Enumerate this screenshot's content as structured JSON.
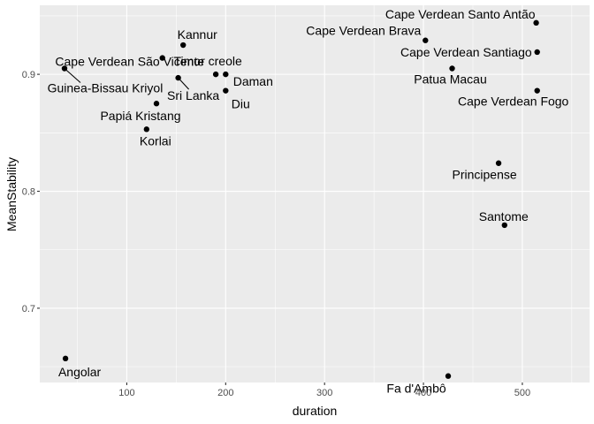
{
  "chart_data": {
    "type": "scatter",
    "xlabel": "duration",
    "ylabel": "MeanStability",
    "xlim": [
      12,
      568
    ],
    "ylim": [
      0.6365,
      0.959
    ],
    "x_ticks": [
      100,
      200,
      300,
      400,
      500
    ],
    "y_ticks": [
      0.7,
      0.8,
      0.9
    ],
    "x_tick_labels": [
      "100",
      "200",
      "300",
      "400",
      "500"
    ],
    "y_tick_labels": [
      "0.7",
      "0.8",
      "0.9"
    ],
    "grid": true,
    "background": "#ebebeb",
    "grid_color": "#ffffff",
    "point_color": "#000000",
    "points": [
      {
        "label": "Cape Verdean Santo Antão",
        "x": 514,
        "y": 0.944
      },
      {
        "label": "Cape Verdean Brava",
        "x": 402,
        "y": 0.929
      },
      {
        "label": "Cape Verdean Santiago",
        "x": 515,
        "y": 0.919
      },
      {
        "label": "Patua Macau",
        "x": 429,
        "y": 0.905
      },
      {
        "label": "Cape Verdean Fogo",
        "x": 515,
        "y": 0.886
      },
      {
        "label": "Kannur",
        "x": 157,
        "y": 0.925
      },
      {
        "label": "Cape Verdean São Vicente",
        "x": 136,
        "y": 0.914
      },
      {
        "label": "Guinea-Bissau Kriyol",
        "x": 37,
        "y": 0.905
      },
      {
        "label": "Sri Lanka",
        "x": 152,
        "y": 0.897
      },
      {
        "label": "Timor creole",
        "x": 190,
        "y": 0.9
      },
      {
        "label": "Daman",
        "x": 200,
        "y": 0.9
      },
      {
        "label": "Diu",
        "x": 200,
        "y": 0.886
      },
      {
        "label": "Papiá Kristang",
        "x": 130,
        "y": 0.875
      },
      {
        "label": "Korlai",
        "x": 120,
        "y": 0.853
      },
      {
        "label": "Principense",
        "x": 476,
        "y": 0.824
      },
      {
        "label": "Santome",
        "x": 482,
        "y": 0.771
      },
      {
        "label": "Angolar",
        "x": 38,
        "y": 0.657
      },
      {
        "label": "Fa d'Ambô",
        "x": 425,
        "y": 0.642
      }
    ]
  }
}
